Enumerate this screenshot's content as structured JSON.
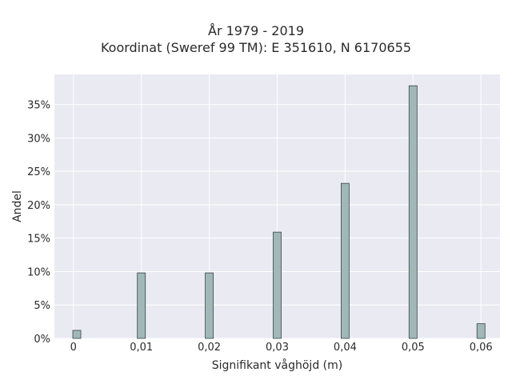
{
  "chart_data": {
    "type": "bar",
    "title": "År 1979 - 2019",
    "subtitle": "Koordinat (Sweref 99 TM): E 351610, N 6170655",
    "xlabel": "Signifikant våghöjd (m)",
    "ylabel": "Andel",
    "x": [
      0.0005,
      0.01,
      0.02,
      0.03,
      0.04,
      0.05,
      0.06
    ],
    "values": [
      1.2,
      9.8,
      9.8,
      15.9,
      23.2,
      37.8,
      2.2
    ],
    "xlim": [
      -0.0028,
      0.0628
    ],
    "ylim": [
      0,
      39.5
    ],
    "xticks": [
      0,
      0.01,
      0.02,
      0.03,
      0.04,
      0.05,
      0.06
    ],
    "xtick_labels": [
      "0",
      "0,01",
      "0,02",
      "0,03",
      "0,04",
      "0,05",
      "0,06"
    ],
    "yticks": [
      0,
      5,
      10,
      15,
      20,
      25,
      30,
      35
    ],
    "ytick_labels": [
      "0%",
      "5%",
      "10%",
      "15%",
      "20%",
      "25%",
      "30%",
      "35%"
    ],
    "grid": true,
    "colors": {
      "bar_fill": "#a0b8b8",
      "bar_edge": "#3a4444",
      "plot_bg": "#eaeaf2",
      "grid": "#ffffff"
    }
  }
}
